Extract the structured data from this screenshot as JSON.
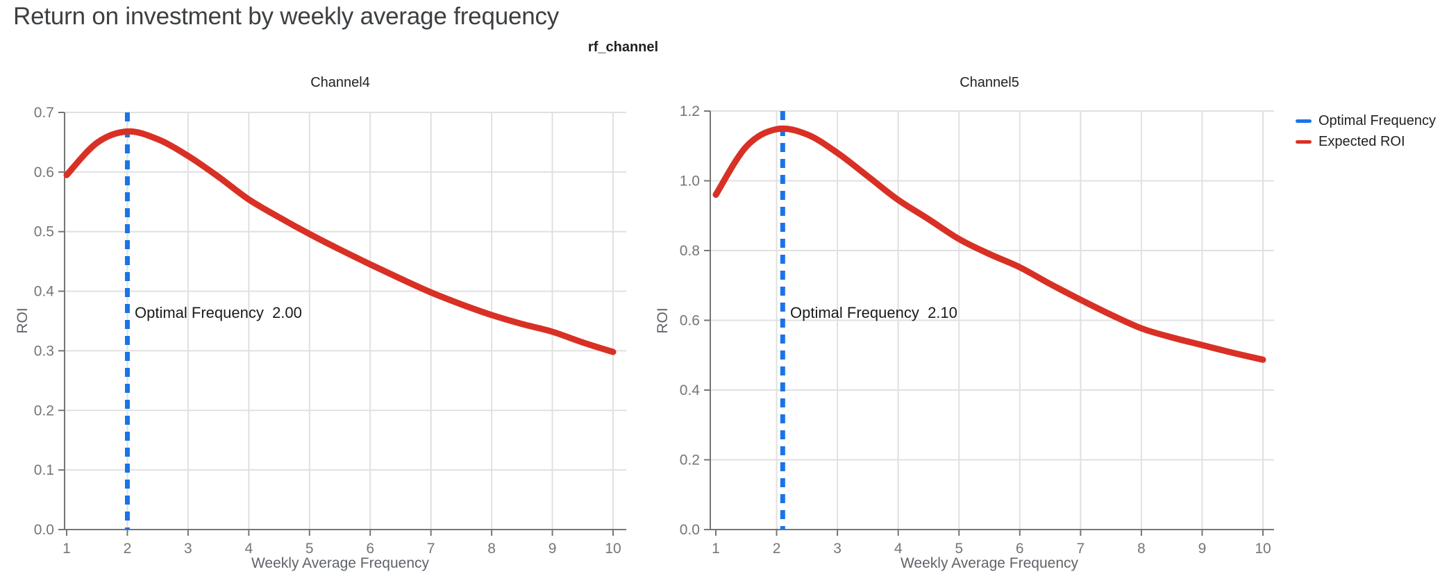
{
  "page": {
    "title": "Return on investment by weekly average frequency",
    "facet_title": "rf_channel"
  },
  "legend": [
    {
      "label": "Optimal Frequency",
      "color": "#1a73e8"
    },
    {
      "label": "Expected ROI",
      "color": "#d93025"
    }
  ],
  "colors": {
    "expected_roi": "#d93025",
    "optimal_frequency": "#1a73e8",
    "grid": "#e0e0e0",
    "axis": "#757575",
    "tick_label": "#757575"
  },
  "chart_data": [
    {
      "type": "line",
      "title": "Channel4",
      "xlabel": "Weekly Average Frequency",
      "ylabel": "ROI",
      "xlim": [
        1,
        10
      ],
      "ylim": [
        0,
        0.7
      ],
      "xticks": [
        1,
        2,
        3,
        4,
        5,
        6,
        7,
        8,
        9,
        10
      ],
      "yticks": [
        0.0,
        0.1,
        0.2,
        0.3,
        0.4,
        0.5,
        0.6,
        0.7
      ],
      "grid": true,
      "legend_position": "top-right-outside",
      "optimal_frequency": 2.0,
      "annotation": "Optimal Frequency  2.00",
      "series": [
        {
          "name": "Expected ROI",
          "x": [
            1,
            1.5,
            2,
            2.5,
            3,
            3.5,
            4,
            4.5,
            5,
            5.5,
            6,
            6.5,
            7,
            7.5,
            8,
            8.5,
            9,
            9.5,
            10
          ],
          "y": [
            0.595,
            0.649,
            0.668,
            0.655,
            0.627,
            0.592,
            0.554,
            0.524,
            0.496,
            0.47,
            0.445,
            0.421,
            0.398,
            0.378,
            0.36,
            0.345,
            0.332,
            0.314,
            0.298
          ]
        }
      ]
    },
    {
      "type": "line",
      "title": "Channel5",
      "xlabel": "Weekly Average Frequency",
      "ylabel": "ROI",
      "xlim": [
        1,
        10
      ],
      "ylim": [
        0,
        1.2
      ],
      "xticks": [
        1,
        2,
        3,
        4,
        5,
        6,
        7,
        8,
        9,
        10
      ],
      "yticks": [
        0.0,
        0.2,
        0.4,
        0.6,
        0.8,
        1.0,
        1.2
      ],
      "grid": true,
      "legend_position": "top-right-outside",
      "optimal_frequency": 2.1,
      "annotation": "Optimal Frequency  2.10",
      "series": [
        {
          "name": "Expected ROI",
          "x": [
            1,
            1.5,
            2,
            2.5,
            3,
            3.5,
            4,
            4.5,
            5,
            5.5,
            6,
            6.5,
            7,
            7.5,
            8,
            8.5,
            9,
            9.5,
            10
          ],
          "y": [
            0.96,
            1.098,
            1.148,
            1.133,
            1.08,
            1.013,
            0.945,
            0.89,
            0.833,
            0.79,
            0.752,
            0.704,
            0.659,
            0.616,
            0.577,
            0.551,
            0.529,
            0.507,
            0.487
          ]
        }
      ]
    }
  ]
}
